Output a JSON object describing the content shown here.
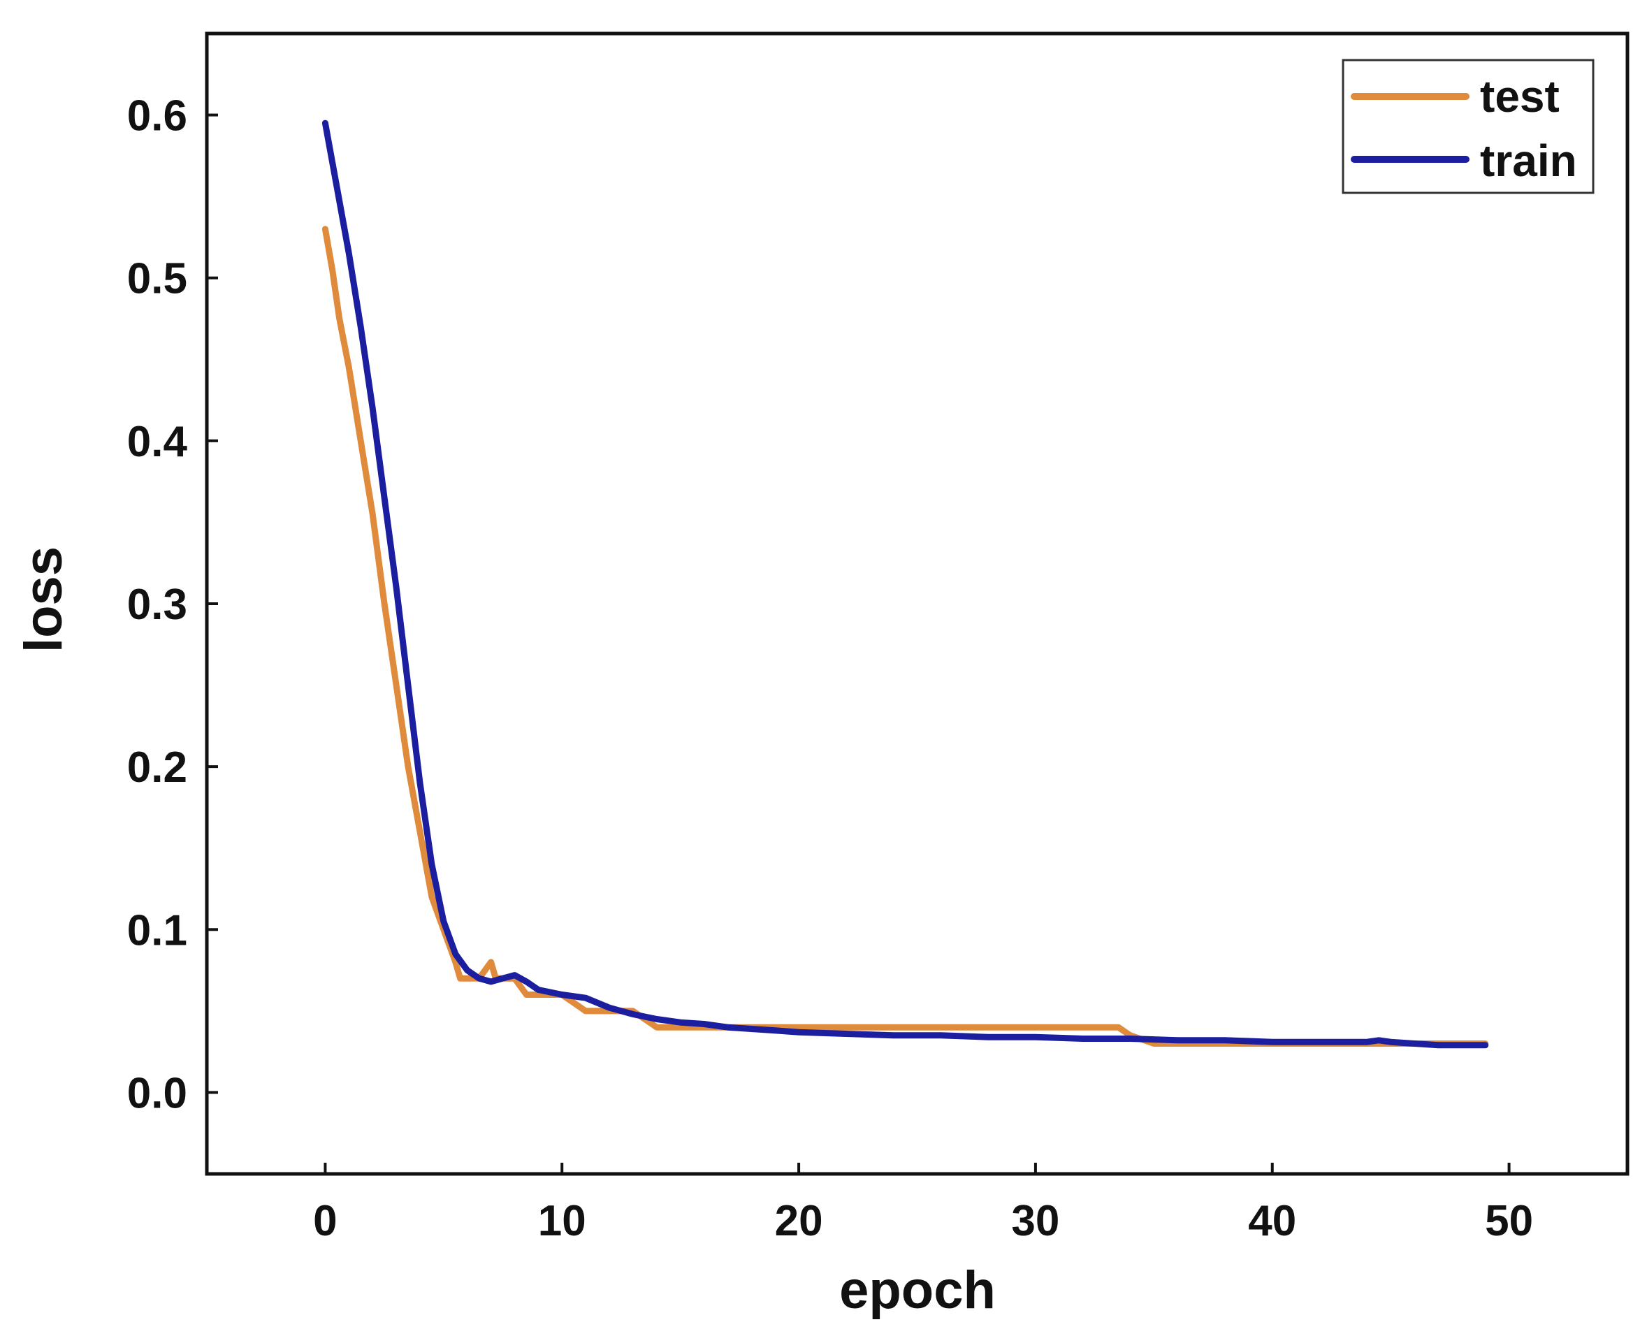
{
  "chart_data": {
    "type": "line",
    "title": "",
    "xlabel": "epoch",
    "ylabel": "loss",
    "xlim": [
      -5,
      55
    ],
    "ylim": [
      -0.05,
      0.65
    ],
    "xticks": [
      0,
      10,
      20,
      30,
      40,
      50
    ],
    "yticks": [
      0.0,
      0.1,
      0.2,
      0.3,
      0.4,
      0.5,
      0.6
    ],
    "xtick_labels": [
      "0",
      "10",
      "20",
      "30",
      "40",
      "50"
    ],
    "ytick_labels": [
      "0.0",
      "0.1",
      "0.2",
      "0.3",
      "0.4",
      "0.5",
      "0.6"
    ],
    "grid": false,
    "legend_position": "top-right",
    "series": [
      {
        "name": "test",
        "color": "#e08a3c",
        "x": [
          0,
          0.3,
          0.6,
          1,
          1.5,
          2,
          2.5,
          3,
          3.5,
          4,
          4.5,
          5,
          5.5,
          5.7,
          6,
          6.5,
          7,
          7.2,
          7.5,
          8,
          8.5,
          9,
          10,
          10.5,
          11,
          12,
          13,
          14,
          15,
          16,
          17,
          18,
          19,
          20,
          22,
          24,
          26,
          28,
          30,
          32,
          33.5,
          34,
          35,
          36,
          38,
          40,
          42,
          44,
          46,
          48,
          49
        ],
        "y": [
          0.53,
          0.505,
          0.475,
          0.445,
          0.4,
          0.355,
          0.3,
          0.25,
          0.2,
          0.16,
          0.12,
          0.1,
          0.08,
          0.07,
          0.07,
          0.07,
          0.08,
          0.07,
          0.07,
          0.07,
          0.06,
          0.06,
          0.06,
          0.055,
          0.05,
          0.05,
          0.05,
          0.04,
          0.04,
          0.04,
          0.04,
          0.04,
          0.04,
          0.04,
          0.04,
          0.04,
          0.04,
          0.04,
          0.04,
          0.04,
          0.04,
          0.035,
          0.03,
          0.03,
          0.03,
          0.03,
          0.03,
          0.03,
          0.03,
          0.03,
          0.03
        ]
      },
      {
        "name": "train",
        "color": "#1c1ea0",
        "x": [
          0,
          0.5,
          1,
          1.5,
          2,
          2.5,
          3,
          3.5,
          4,
          4.5,
          5,
          5.5,
          6,
          6.5,
          7,
          7.5,
          8,
          8.5,
          9,
          10,
          11,
          12,
          13,
          14,
          15,
          16,
          17,
          18,
          19,
          20,
          22,
          24,
          26,
          28,
          30,
          32,
          34,
          36,
          38,
          40,
          42,
          44,
          44.5,
          45,
          46,
          47,
          48,
          49
        ],
        "y": [
          0.595,
          0.555,
          0.515,
          0.47,
          0.42,
          0.365,
          0.31,
          0.25,
          0.19,
          0.14,
          0.105,
          0.085,
          0.075,
          0.07,
          0.068,
          0.07,
          0.072,
          0.068,
          0.063,
          0.06,
          0.058,
          0.052,
          0.048,
          0.045,
          0.043,
          0.042,
          0.04,
          0.039,
          0.038,
          0.037,
          0.036,
          0.035,
          0.035,
          0.034,
          0.034,
          0.033,
          0.033,
          0.032,
          0.032,
          0.031,
          0.031,
          0.031,
          0.032,
          0.031,
          0.03,
          0.029,
          0.029,
          0.029
        ]
      }
    ]
  }
}
